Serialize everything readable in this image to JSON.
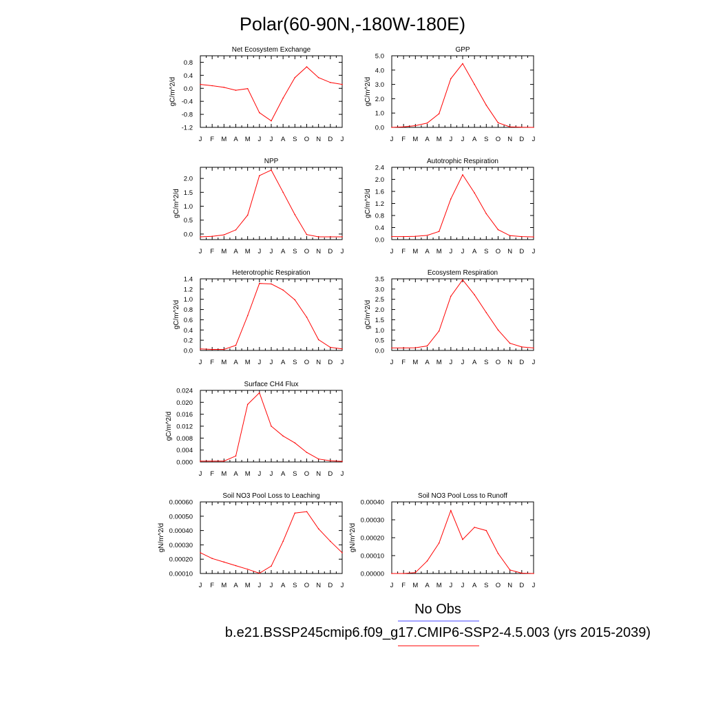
{
  "page": {
    "title": "Polar(60-90N,-180W-180E)"
  },
  "legend": {
    "items": [
      {
        "label": "No Obs",
        "color": "#4444ff"
      },
      {
        "label": "b.e21.BSSP245cmip6.f09_g17.CMIP6-SSP2-4.5.003 (yrs 2015-2039)",
        "color": "#ff0000"
      }
    ]
  },
  "chart_data": [
    {
      "type": "line",
      "title": "Net Ecosystem Exchange",
      "ylabel": "gC/m^2/d",
      "ylim": [
        -1.2,
        1.0
      ],
      "yticks": [
        "0.8",
        "0.4",
        "0.0",
        "-0.4",
        "-0.8",
        "-1.2"
      ],
      "yticks_val": [
        0.8,
        0.4,
        0.0,
        -0.4,
        -0.8,
        -1.2
      ],
      "categories": [
        "J",
        "F",
        "M",
        "A",
        "M",
        "J",
        "J",
        "A",
        "S",
        "O",
        "N",
        "D",
        "J"
      ],
      "series": [
        {
          "values": [
            0.12,
            0.08,
            0.03,
            -0.06,
            -0.01,
            -0.75,
            -1.0,
            -0.3,
            0.33,
            0.66,
            0.33,
            0.18,
            0.12
          ],
          "color": "#ff0000"
        }
      ]
    },
    {
      "type": "line",
      "title": "GPP",
      "ylabel": "gC/m^2/d",
      "ylim": [
        0.0,
        5.0
      ],
      "yticks": [
        "5.0",
        "4.0",
        "3.0",
        "2.0",
        "1.0",
        "0.0"
      ],
      "yticks_val": [
        5,
        4,
        3,
        2,
        1,
        0
      ],
      "categories": [
        "J",
        "F",
        "M",
        "A",
        "M",
        "J",
        "J",
        "A",
        "S",
        "O",
        "N",
        "D",
        "J"
      ],
      "series": [
        {
          "values": [
            0.0,
            0.04,
            0.12,
            0.3,
            0.95,
            3.4,
            4.45,
            3.0,
            1.55,
            0.32,
            0.04,
            0.01,
            0.0
          ],
          "color": "#ff0000"
        }
      ]
    },
    {
      "type": "line",
      "title": "NPP",
      "ylabel": "gC/m^2/d",
      "ylim": [
        -0.2,
        2.4
      ],
      "yticks": [
        "2.0",
        "1.5",
        "1.0",
        "0.5",
        "0.0"
      ],
      "yticks_val": [
        2.0,
        1.5,
        1.0,
        0.5,
        0.0
      ],
      "categories": [
        "J",
        "F",
        "M",
        "A",
        "M",
        "J",
        "J",
        "A",
        "S",
        "O",
        "N",
        "D",
        "J"
      ],
      "series": [
        {
          "values": [
            -0.1,
            -0.08,
            -0.03,
            0.15,
            0.68,
            2.1,
            2.3,
            1.5,
            0.7,
            -0.02,
            -0.1,
            -0.1,
            -0.1
          ],
          "color": "#ff0000"
        }
      ]
    },
    {
      "type": "line",
      "title": "Autotrophic Respiration",
      "ylabel": "gC/m^2/d",
      "ylim": [
        0.0,
        2.4
      ],
      "yticks": [
        "2.4",
        "2.0",
        "1.6",
        "1.2",
        "0.8",
        "0.4",
        "0.0"
      ],
      "yticks_val": [
        2.4,
        2.0,
        1.6,
        1.2,
        0.8,
        0.4,
        0.0
      ],
      "categories": [
        "J",
        "F",
        "M",
        "A",
        "M",
        "J",
        "J",
        "A",
        "S",
        "O",
        "N",
        "D",
        "J"
      ],
      "series": [
        {
          "values": [
            0.1,
            0.1,
            0.11,
            0.14,
            0.27,
            1.35,
            2.15,
            1.55,
            0.86,
            0.33,
            0.13,
            0.1,
            0.09
          ],
          "color": "#ff0000"
        }
      ]
    },
    {
      "type": "line",
      "title": "Heterotrophic Respiration",
      "ylabel": "gC/m^2/d",
      "ylim": [
        0.0,
        1.4
      ],
      "yticks": [
        "1.4",
        "1.2",
        "1.0",
        "0.8",
        "0.6",
        "0.4",
        "0.2",
        "0.0"
      ],
      "yticks_val": [
        1.4,
        1.2,
        1.0,
        0.8,
        0.6,
        0.4,
        0.2,
        0.0
      ],
      "categories": [
        "J",
        "F",
        "M",
        "A",
        "M",
        "J",
        "J",
        "A",
        "S",
        "O",
        "N",
        "D",
        "J"
      ],
      "series": [
        {
          "values": [
            0.03,
            0.02,
            0.02,
            0.1,
            0.68,
            1.31,
            1.3,
            1.18,
            0.99,
            0.65,
            0.21,
            0.06,
            0.03
          ],
          "color": "#ff0000"
        }
      ]
    },
    {
      "type": "line",
      "title": "Ecosystem Respiration",
      "ylabel": "gC/m^2/d",
      "ylim": [
        0.0,
        3.5
      ],
      "yticks": [
        "3.5",
        "3.0",
        "2.5",
        "2.0",
        "1.5",
        "1.0",
        "0.5",
        "0.0"
      ],
      "yticks_val": [
        3.5,
        3.0,
        2.5,
        2.0,
        1.5,
        1.0,
        0.5,
        0.0
      ],
      "categories": [
        "J",
        "F",
        "M",
        "A",
        "M",
        "J",
        "J",
        "A",
        "S",
        "O",
        "N",
        "D",
        "J"
      ],
      "series": [
        {
          "values": [
            0.12,
            0.12,
            0.13,
            0.22,
            0.95,
            2.65,
            3.45,
            2.72,
            1.85,
            1.0,
            0.35,
            0.17,
            0.12
          ],
          "color": "#ff0000"
        }
      ]
    },
    {
      "type": "line",
      "title": "Surface CH4 Flux",
      "ylabel": "gC/m^2/d",
      "ylim": [
        0.0,
        0.024
      ],
      "yticks": [
        "0.024",
        "0.020",
        "0.016",
        "0.012",
        "0.008",
        "0.004",
        "0.000"
      ],
      "yticks_val": [
        0.024,
        0.02,
        0.016,
        0.012,
        0.008,
        0.004,
        0.0
      ],
      "categories": [
        "J",
        "F",
        "M",
        "A",
        "M",
        "J",
        "J",
        "A",
        "S",
        "O",
        "N",
        "D",
        "J"
      ],
      "series": [
        {
          "values": [
            0.0003,
            0.0003,
            0.0003,
            0.002,
            0.0193,
            0.0232,
            0.012,
            0.0087,
            0.0064,
            0.0032,
            0.001,
            0.0004,
            0.0002
          ],
          "color": "#ff0000"
        }
      ]
    },
    {
      "type": "line",
      "title": "Soil NO3 Pool Loss to Leaching",
      "ylabel": "gN/m^2/d",
      "ylim": [
        0.0001,
        0.0006
      ],
      "yticks": [
        "0.00060",
        "0.00050",
        "0.00040",
        "0.00030",
        "0.00020",
        "0.00010"
      ],
      "yticks_val": [
        0.0006,
        0.0005,
        0.0004,
        0.0003,
        0.0002,
        0.0001
      ],
      "categories": [
        "J",
        "F",
        "M",
        "A",
        "M",
        "J",
        "J",
        "A",
        "S",
        "O",
        "N",
        "D",
        "J"
      ],
      "series": [
        {
          "values": [
            0.000245,
            0.000205,
            0.00018,
            0.000155,
            0.00013,
            0.000102,
            0.000152,
            0.000325,
            0.000522,
            0.000532,
            0.000412,
            0.000325,
            0.000245
          ],
          "color": "#ff0000"
        }
      ]
    },
    {
      "type": "line",
      "title": "Soil NO3 Pool Loss to Runoff",
      "ylabel": "gN/m^2/d",
      "ylim": [
        0.0,
        0.0004
      ],
      "yticks": [
        "0.00040",
        "0.00030",
        "0.00020",
        "0.00010",
        "0.00000"
      ],
      "yticks_val": [
        0.0004,
        0.0003,
        0.0002,
        0.0001,
        0.0
      ],
      "categories": [
        "J",
        "F",
        "M",
        "A",
        "M",
        "J",
        "J",
        "A",
        "S",
        "O",
        "N",
        "D",
        "J"
      ],
      "series": [
        {
          "values": [
            0.0,
            0.0,
            5e-06,
            7e-05,
            0.00017,
            0.000352,
            0.00019,
            0.000258,
            0.00024,
            0.000112,
            2e-05,
            2e-06,
            0.0
          ],
          "color": "#ff0000"
        }
      ]
    }
  ]
}
